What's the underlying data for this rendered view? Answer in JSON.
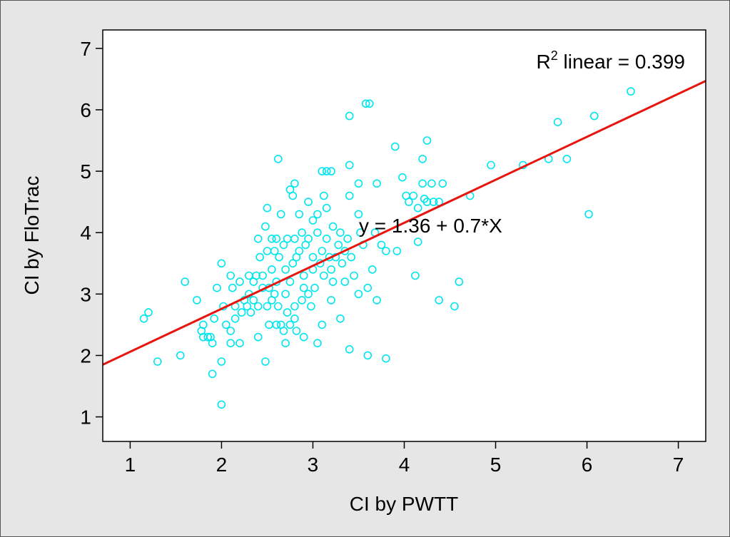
{
  "chart_data": {
    "type": "scatter",
    "xlabel": "CI by PWTT",
    "ylabel": "CI by FloTrac",
    "xlim": [
      0.7,
      7.3
    ],
    "ylim": [
      0.6,
      7.3
    ],
    "xticks": [
      1,
      2,
      3,
      4,
      5,
      6,
      7
    ],
    "yticks": [
      1,
      2,
      3,
      4,
      5,
      6,
      7
    ],
    "xtick_labels": [
      "1",
      "2",
      "3",
      "4",
      "5",
      "6",
      "7"
    ],
    "ytick_labels": [
      "1",
      "2",
      "3",
      "4",
      "5",
      "6",
      "7"
    ],
    "r2_prefix": "R",
    "r2_sup": "2",
    "r2_text": " linear = 0.399",
    "equation": "y = 1.36 + 0.7*X",
    "fit": {
      "intercept": 1.36,
      "slope": 0.7
    },
    "colors": {
      "points": "#00e5ee",
      "fit_line": "#e8150f",
      "frame_bg": "#e6e6e6",
      "plot_bg": "#ffffff"
    },
    "grid": false,
    "legend": "none",
    "points": [
      [
        1.15,
        2.6
      ],
      [
        1.2,
        2.7
      ],
      [
        1.3,
        1.9
      ],
      [
        1.55,
        2.0
      ],
      [
        1.6,
        3.2
      ],
      [
        1.73,
        2.9
      ],
      [
        1.78,
        2.4
      ],
      [
        1.8,
        2.3
      ],
      [
        1.8,
        2.5
      ],
      [
        1.85,
        2.3
      ],
      [
        1.88,
        2.3
      ],
      [
        1.9,
        2.2
      ],
      [
        1.9,
        1.7
      ],
      [
        1.92,
        2.6
      ],
      [
        1.95,
        3.1
      ],
      [
        2.0,
        1.9
      ],
      [
        2.0,
        1.2
      ],
      [
        2.0,
        3.5
      ],
      [
        2.02,
        2.8
      ],
      [
        2.05,
        2.5
      ],
      [
        2.1,
        2.2
      ],
      [
        2.1,
        2.4
      ],
      [
        2.1,
        3.3
      ],
      [
        2.12,
        3.1
      ],
      [
        2.15,
        2.8
      ],
      [
        2.15,
        2.6
      ],
      [
        2.2,
        3.2
      ],
      [
        2.2,
        2.2
      ],
      [
        2.22,
        2.7
      ],
      [
        2.25,
        2.9
      ],
      [
        2.28,
        2.8
      ],
      [
        2.3,
        3.0
      ],
      [
        2.3,
        3.3
      ],
      [
        2.32,
        2.7
      ],
      [
        2.35,
        2.9
      ],
      [
        2.35,
        3.2
      ],
      [
        2.38,
        3.3
      ],
      [
        2.4,
        2.3
      ],
      [
        2.4,
        2.8
      ],
      [
        2.4,
        3.9
      ],
      [
        2.42,
        3.6
      ],
      [
        2.45,
        3.3
      ],
      [
        2.45,
        3.1
      ],
      [
        2.48,
        4.1
      ],
      [
        2.48,
        1.9
      ],
      [
        2.5,
        2.8
      ],
      [
        2.5,
        3.7
      ],
      [
        2.5,
        4.4
      ],
      [
        2.52,
        2.5
      ],
      [
        2.52,
        3.1
      ],
      [
        2.55,
        3.4
      ],
      [
        2.55,
        2.9
      ],
      [
        2.55,
        3.9
      ],
      [
        2.58,
        3.7
      ],
      [
        2.58,
        3.0
      ],
      [
        2.6,
        2.5
      ],
      [
        2.6,
        3.2
      ],
      [
        2.6,
        3.9
      ],
      [
        2.62,
        5.2
      ],
      [
        2.62,
        2.8
      ],
      [
        2.63,
        3.6
      ],
      [
        2.65,
        2.5
      ],
      [
        2.65,
        4.3
      ],
      [
        2.68,
        3.8
      ],
      [
        2.68,
        2.4
      ],
      [
        2.7,
        2.2
      ],
      [
        2.7,
        3.0
      ],
      [
        2.7,
        3.4
      ],
      [
        2.72,
        3.9
      ],
      [
        2.72,
        2.7
      ],
      [
        2.75,
        2.5
      ],
      [
        2.75,
        3.2
      ],
      [
        2.75,
        4.7
      ],
      [
        2.78,
        4.6
      ],
      [
        2.78,
        3.5
      ],
      [
        2.8,
        4.8
      ],
      [
        2.8,
        3.9
      ],
      [
        2.8,
        2.8
      ],
      [
        2.8,
        2.6
      ],
      [
        2.82,
        3.6
      ],
      [
        2.82,
        2.4
      ],
      [
        2.85,
        3.7
      ],
      [
        2.85,
        4.3
      ],
      [
        2.88,
        4.0
      ],
      [
        2.88,
        2.9
      ],
      [
        2.9,
        3.1
      ],
      [
        2.9,
        2.3
      ],
      [
        2.9,
        3.3
      ],
      [
        2.92,
        3.8
      ],
      [
        2.95,
        4.5
      ],
      [
        2.95,
        3.0
      ],
      [
        2.95,
        3.9
      ],
      [
        2.98,
        2.8
      ],
      [
        3.0,
        3.4
      ],
      [
        3.0,
        4.2
      ],
      [
        3.0,
        3.6
      ],
      [
        3.02,
        3.1
      ],
      [
        3.05,
        2.2
      ],
      [
        3.05,
        4.0
      ],
      [
        3.05,
        4.3
      ],
      [
        3.08,
        3.5
      ],
      [
        3.1,
        5.0
      ],
      [
        3.1,
        3.7
      ],
      [
        3.1,
        2.5
      ],
      [
        3.12,
        4.6
      ],
      [
        3.12,
        3.3
      ],
      [
        3.15,
        3.9
      ],
      [
        3.15,
        4.4
      ],
      [
        3.15,
        5.0
      ],
      [
        3.18,
        3.6
      ],
      [
        3.2,
        5.0
      ],
      [
        3.2,
        2.9
      ],
      [
        3.2,
        3.4
      ],
      [
        3.22,
        4.1
      ],
      [
        3.22,
        3.2
      ],
      [
        3.25,
        3.6
      ],
      [
        3.28,
        3.8
      ],
      [
        3.3,
        4.0
      ],
      [
        3.3,
        2.6
      ],
      [
        3.32,
        3.5
      ],
      [
        3.35,
        3.2
      ],
      [
        3.35,
        3.7
      ],
      [
        3.38,
        3.9
      ],
      [
        3.4,
        4.6
      ],
      [
        3.4,
        5.1
      ],
      [
        3.4,
        2.1
      ],
      [
        3.4,
        5.9
      ],
      [
        3.42,
        3.6
      ],
      [
        3.45,
        3.3
      ],
      [
        3.5,
        4.8
      ],
      [
        3.5,
        4.3
      ],
      [
        3.5,
        3.0
      ],
      [
        3.52,
        4.0
      ],
      [
        3.55,
        3.8
      ],
      [
        3.58,
        6.1
      ],
      [
        3.6,
        3.1
      ],
      [
        3.6,
        2.0
      ],
      [
        3.62,
        6.1
      ],
      [
        3.65,
        3.4
      ],
      [
        3.68,
        4.0
      ],
      [
        3.7,
        4.8
      ],
      [
        3.7,
        2.9
      ],
      [
        3.75,
        3.8
      ],
      [
        3.8,
        1.95
      ],
      [
        3.8,
        3.7
      ],
      [
        3.9,
        5.4
      ],
      [
        3.92,
        3.7
      ],
      [
        3.98,
        4.9
      ],
      [
        4.02,
        4.6
      ],
      [
        4.05,
        4.5
      ],
      [
        4.1,
        4.6
      ],
      [
        4.12,
        3.3
      ],
      [
        4.15,
        4.4
      ],
      [
        4.15,
        3.85
      ],
      [
        4.2,
        4.8
      ],
      [
        4.2,
        5.2
      ],
      [
        4.22,
        4.55
      ],
      [
        4.25,
        5.5
      ],
      [
        4.25,
        4.5
      ],
      [
        4.3,
        4.8
      ],
      [
        4.32,
        4.5
      ],
      [
        4.38,
        4.5
      ],
      [
        4.38,
        2.9
      ],
      [
        4.42,
        4.8
      ],
      [
        4.55,
        2.8
      ],
      [
        4.6,
        3.2
      ],
      [
        4.72,
        4.6
      ],
      [
        4.95,
        5.1
      ],
      [
        5.3,
        5.1
      ],
      [
        5.58,
        5.2
      ],
      [
        5.68,
        5.8
      ],
      [
        5.78,
        5.2
      ],
      [
        6.02,
        4.3
      ],
      [
        6.08,
        5.9
      ],
      [
        6.48,
        6.3
      ]
    ]
  }
}
